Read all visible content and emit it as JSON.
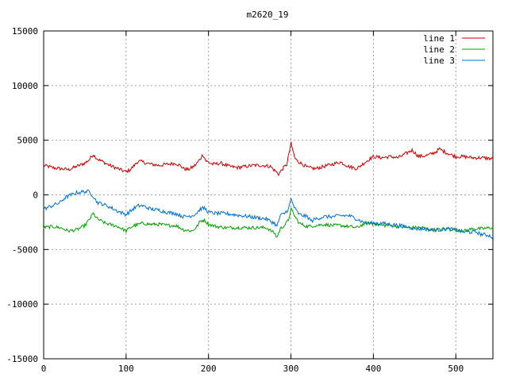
{
  "chart_data": {
    "type": "line",
    "title": "m2620_19",
    "xlabel": "",
    "ylabel": "",
    "xlim": [
      0,
      545
    ],
    "ylim": [
      -15000,
      15000
    ],
    "xticks": [
      "0",
      "100",
      "200",
      "300",
      "400",
      "500"
    ],
    "yticks": [
      "-15000",
      "-10000",
      "-5000",
      "0",
      "5000",
      "10000",
      "15000"
    ],
    "grid": true,
    "legend_position": "top-right",
    "series": [
      {
        "name": "line 1",
        "color": "#cc0000",
        "keypoints": [
          [
            0,
            2700
          ],
          [
            10,
            2500
          ],
          [
            20,
            2400
          ],
          [
            30,
            2300
          ],
          [
            40,
            2600
          ],
          [
            50,
            2900
          ],
          [
            55,
            3200
          ],
          [
            60,
            3700
          ],
          [
            65,
            3300
          ],
          [
            70,
            3100
          ],
          [
            80,
            2700
          ],
          [
            90,
            2400
          ],
          [
            100,
            2100
          ],
          [
            105,
            2300
          ],
          [
            110,
            2700
          ],
          [
            115,
            3100
          ],
          [
            120,
            3000
          ],
          [
            130,
            2800
          ],
          [
            140,
            2700
          ],
          [
            150,
            2800
          ],
          [
            160,
            2900
          ],
          [
            165,
            2700
          ],
          [
            170,
            2400
          ],
          [
            175,
            2300
          ],
          [
            180,
            2500
          ],
          [
            185,
            2800
          ],
          [
            190,
            3300
          ],
          [
            193,
            3700
          ],
          [
            197,
            3100
          ],
          [
            205,
            2800
          ],
          [
            215,
            2900
          ],
          [
            225,
            2600
          ],
          [
            235,
            2500
          ],
          [
            245,
            2600
          ],
          [
            255,
            2700
          ],
          [
            265,
            2700
          ],
          [
            275,
            2600
          ],
          [
            282,
            2100
          ],
          [
            285,
            1900
          ],
          [
            290,
            2400
          ],
          [
            295,
            2800
          ],
          [
            300,
            4700
          ],
          [
            305,
            3300
          ],
          [
            310,
            3000
          ],
          [
            320,
            2500
          ],
          [
            330,
            2400
          ],
          [
            340,
            2600
          ],
          [
            350,
            2800
          ],
          [
            360,
            3000
          ],
          [
            370,
            2600
          ],
          [
            380,
            2400
          ],
          [
            390,
            3000
          ],
          [
            400,
            3500
          ],
          [
            410,
            3400
          ],
          [
            420,
            3500
          ],
          [
            430,
            3400
          ],
          [
            440,
            3800
          ],
          [
            447,
            4100
          ],
          [
            455,
            3500
          ],
          [
            465,
            3600
          ],
          [
            475,
            3900
          ],
          [
            480,
            4200
          ],
          [
            490,
            3800
          ],
          [
            500,
            3500
          ],
          [
            510,
            3500
          ],
          [
            520,
            3400
          ],
          [
            530,
            3400
          ],
          [
            545,
            3300
          ]
        ],
        "amp": 160
      },
      {
        "name": "line 2",
        "color": "#00a000",
        "keypoints": [
          [
            0,
            -3000
          ],
          [
            10,
            -2900
          ],
          [
            20,
            -3000
          ],
          [
            30,
            -3300
          ],
          [
            40,
            -3200
          ],
          [
            50,
            -2800
          ],
          [
            55,
            -2300
          ],
          [
            60,
            -1700
          ],
          [
            65,
            -2200
          ],
          [
            75,
            -2600
          ],
          [
            90,
            -2900
          ],
          [
            100,
            -3300
          ],
          [
            105,
            -3000
          ],
          [
            110,
            -2800
          ],
          [
            120,
            -2600
          ],
          [
            130,
            -2700
          ],
          [
            140,
            -2700
          ],
          [
            150,
            -2800
          ],
          [
            160,
            -2800
          ],
          [
            170,
            -3200
          ],
          [
            180,
            -3300
          ],
          [
            185,
            -3000
          ],
          [
            190,
            -2400
          ],
          [
            195,
            -2300
          ],
          [
            200,
            -2700
          ],
          [
            210,
            -2900
          ],
          [
            220,
            -3000
          ],
          [
            230,
            -3000
          ],
          [
            240,
            -3000
          ],
          [
            250,
            -3000
          ],
          [
            260,
            -3000
          ],
          [
            270,
            -3000
          ],
          [
            280,
            -3500
          ],
          [
            283,
            -3900
          ],
          [
            287,
            -3100
          ],
          [
            292,
            -2800
          ],
          [
            297,
            -2300
          ],
          [
            300,
            -1300
          ],
          [
            305,
            -2000
          ],
          [
            310,
            -2600
          ],
          [
            320,
            -2900
          ],
          [
            330,
            -2800
          ],
          [
            340,
            -2700
          ],
          [
            350,
            -2800
          ],
          [
            360,
            -2800
          ],
          [
            370,
            -2900
          ],
          [
            380,
            -3000
          ],
          [
            390,
            -2600
          ],
          [
            400,
            -2600
          ],
          [
            410,
            -2800
          ],
          [
            420,
            -2800
          ],
          [
            430,
            -2900
          ],
          [
            440,
            -3000
          ],
          [
            450,
            -3000
          ],
          [
            460,
            -3000
          ],
          [
            470,
            -3200
          ],
          [
            480,
            -3200
          ],
          [
            490,
            -3100
          ],
          [
            500,
            -3200
          ],
          [
            510,
            -3300
          ],
          [
            520,
            -3100
          ],
          [
            530,
            -3100
          ],
          [
            545,
            -3000
          ]
        ],
        "amp": 150
      },
      {
        "name": "line 3",
        "color": "#0070d0",
        "keypoints": [
          [
            0,
            -1300
          ],
          [
            10,
            -1000
          ],
          [
            20,
            -700
          ],
          [
            25,
            -300
          ],
          [
            30,
            -100
          ],
          [
            40,
            200
          ],
          [
            50,
            300
          ],
          [
            55,
            300
          ],
          [
            60,
            -100
          ],
          [
            65,
            -700
          ],
          [
            70,
            -800
          ],
          [
            80,
            -1100
          ],
          [
            90,
            -1500
          ],
          [
            100,
            -1800
          ],
          [
            105,
            -1500
          ],
          [
            110,
            -1200
          ],
          [
            115,
            -1000
          ],
          [
            120,
            -1000
          ],
          [
            130,
            -1300
          ],
          [
            140,
            -1400
          ],
          [
            150,
            -1600
          ],
          [
            160,
            -1700
          ],
          [
            170,
            -2000
          ],
          [
            180,
            -1900
          ],
          [
            185,
            -1700
          ],
          [
            190,
            -1300
          ],
          [
            195,
            -1200
          ],
          [
            200,
            -1600
          ],
          [
            210,
            -1700
          ],
          [
            220,
            -1700
          ],
          [
            230,
            -1800
          ],
          [
            240,
            -1900
          ],
          [
            250,
            -2000
          ],
          [
            260,
            -2100
          ],
          [
            270,
            -2200
          ],
          [
            280,
            -2600
          ],
          [
            283,
            -2900
          ],
          [
            287,
            -1900
          ],
          [
            292,
            -1700
          ],
          [
            297,
            -1300
          ],
          [
            300,
            -400
          ],
          [
            305,
            -1300
          ],
          [
            310,
            -1800
          ],
          [
            320,
            -2000
          ],
          [
            325,
            -2400
          ],
          [
            330,
            -2200
          ],
          [
            340,
            -2000
          ],
          [
            350,
            -2000
          ],
          [
            360,
            -1900
          ],
          [
            370,
            -1900
          ],
          [
            380,
            -2200
          ],
          [
            390,
            -2600
          ],
          [
            400,
            -2600
          ],
          [
            410,
            -2600
          ],
          [
            420,
            -2700
          ],
          [
            430,
            -2800
          ],
          [
            440,
            -2900
          ],
          [
            450,
            -3100
          ],
          [
            460,
            -3100
          ],
          [
            470,
            -3200
          ],
          [
            480,
            -3200
          ],
          [
            490,
            -3100
          ],
          [
            500,
            -3200
          ],
          [
            510,
            -3400
          ],
          [
            520,
            -3400
          ],
          [
            525,
            -3400
          ],
          [
            530,
            -3600
          ],
          [
            540,
            -3700
          ],
          [
            545,
            -3900
          ]
        ],
        "amp": 170
      }
    ]
  }
}
